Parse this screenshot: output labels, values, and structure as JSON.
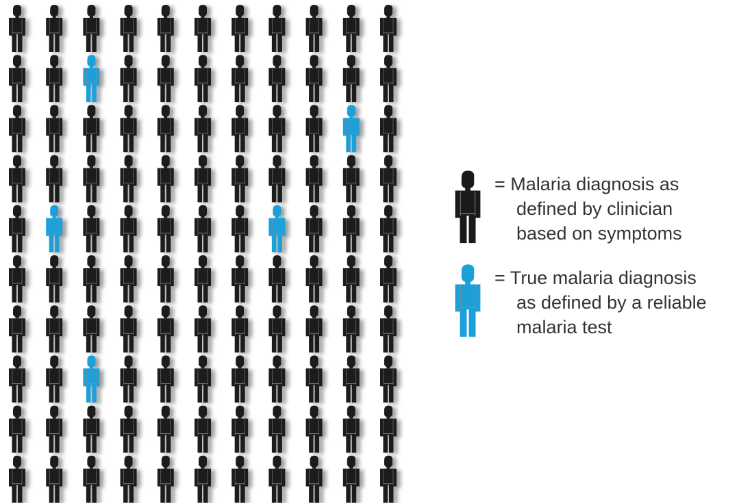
{
  "grid": {
    "rows": 10,
    "columns": 11,
    "base_color": "#1a1a1a",
    "highlight_color": "#1ca0da",
    "highlighted": [
      [
        1,
        2
      ],
      [
        2,
        9
      ],
      [
        4,
        1
      ],
      [
        4,
        7
      ],
      [
        7,
        2
      ]
    ]
  },
  "legend": [
    {
      "lines": [
        "= Malaria diagnosis as",
        "defined by clinician",
        "based on symptoms"
      ]
    },
    {
      "lines": [
        "= True malaria diagnosis",
        "as defined by a reliable",
        "malaria test"
      ]
    }
  ]
}
